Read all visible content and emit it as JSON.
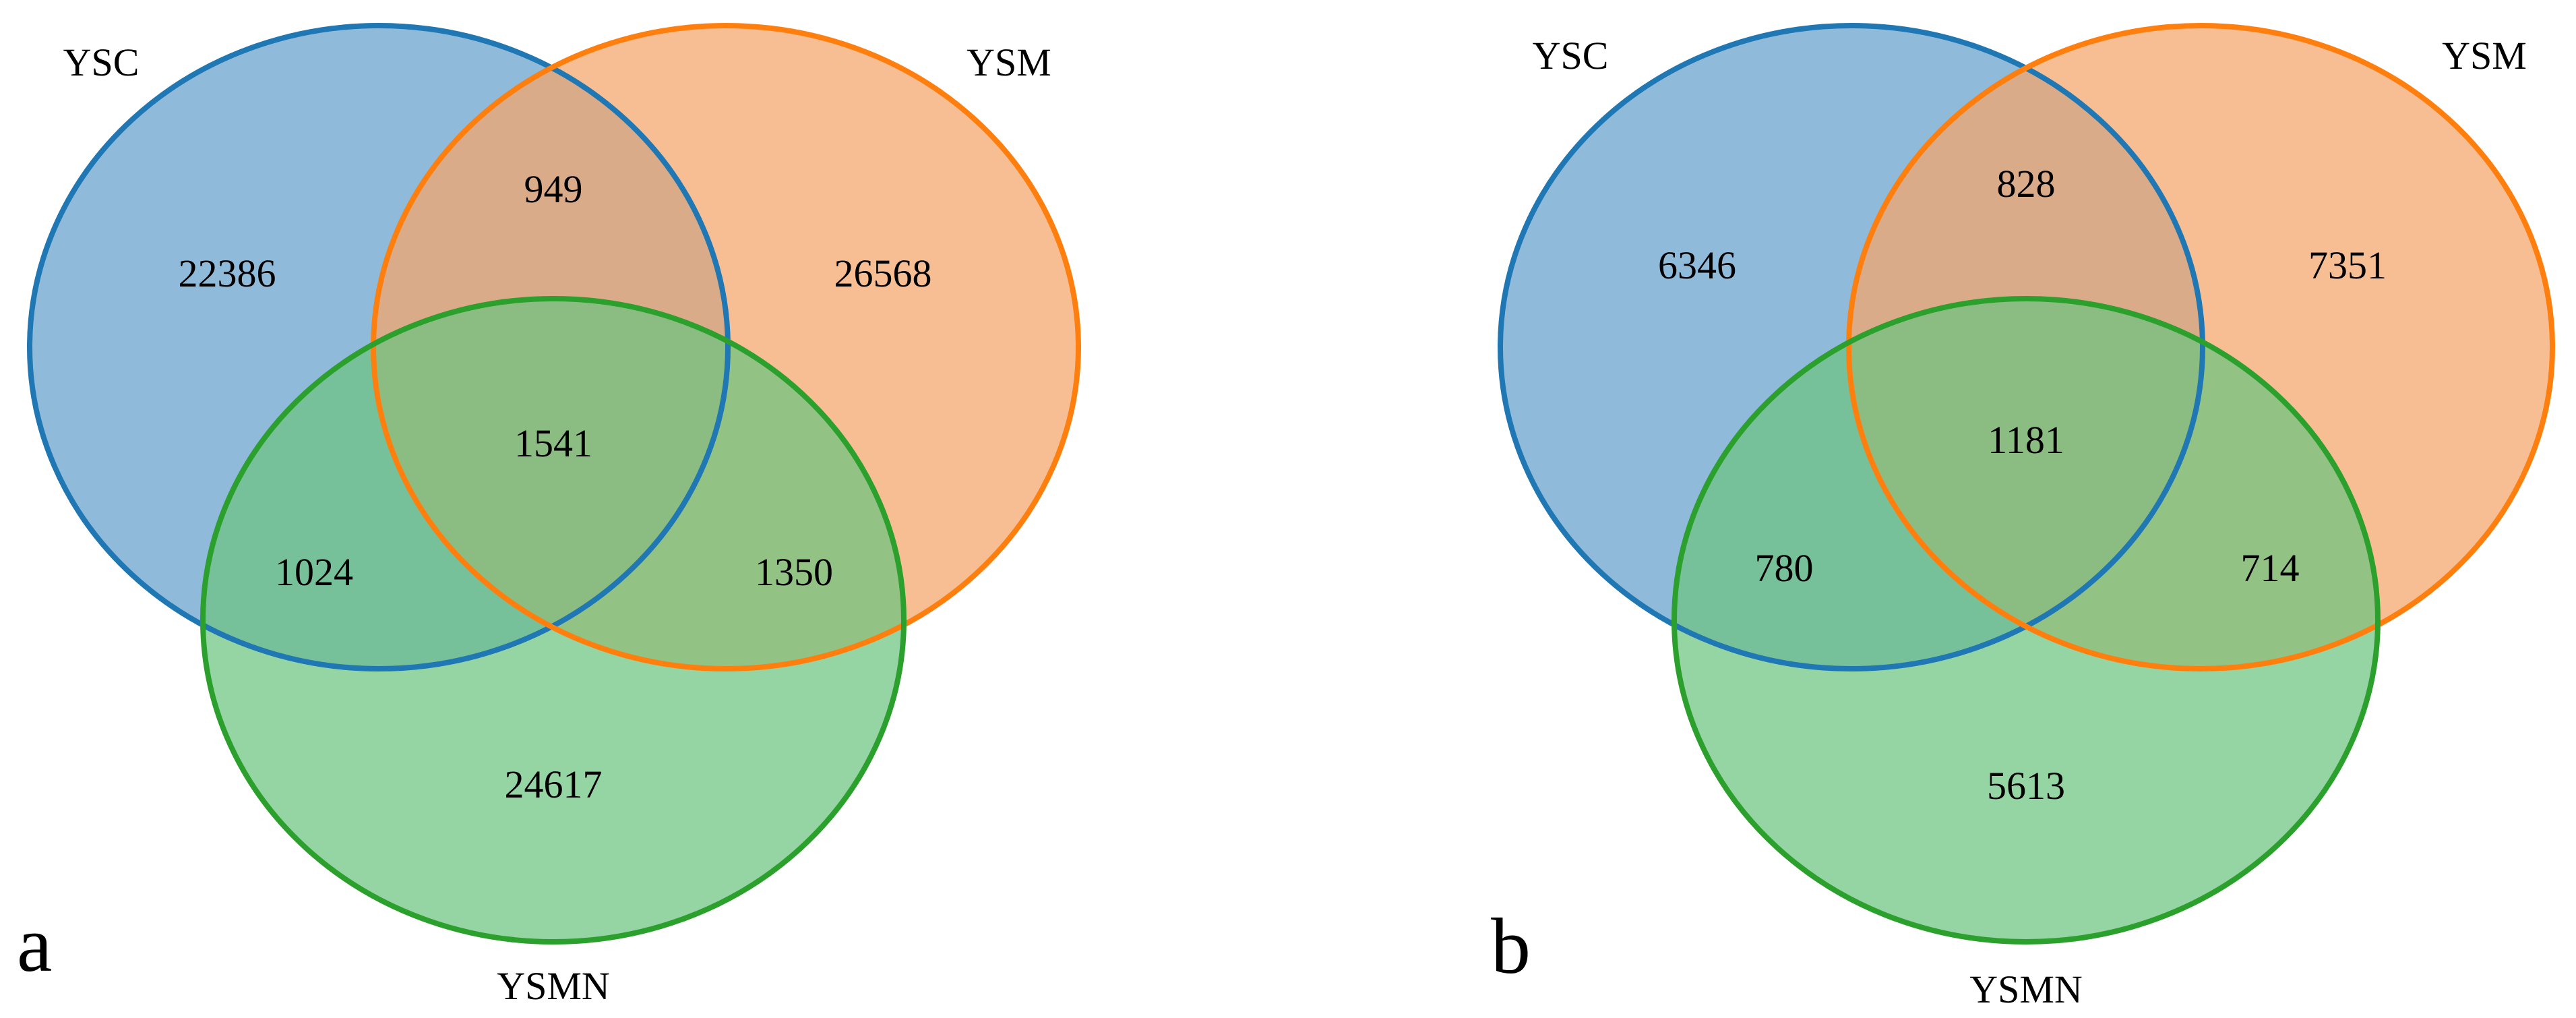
{
  "colors": {
    "YSC": {
      "fill": "#6fa6cf",
      "stroke": "#1f77b4"
    },
    "YSM": {
      "fill": "#f5a56a",
      "stroke": "#ff7f0e"
    },
    "YSMN": {
      "fill": "#6cc47f",
      "stroke": "#2ca02c"
    }
  },
  "panels": [
    {
      "letter": "a",
      "sets": {
        "YSC": "YSC",
        "YSM": "YSM",
        "YSMN": "YSMN"
      },
      "counts": {
        "ysc_only": "22386",
        "ysm_only": "26568",
        "ysmn_only": "24617",
        "ysc_ysm": "949",
        "ysc_ysmn": "1024",
        "ysm_ysmn": "1350",
        "all_three": "1541"
      }
    },
    {
      "letter": "b",
      "sets": {
        "YSC": "YSC",
        "YSM": "YSM",
        "YSMN": "YSMN"
      },
      "counts": {
        "ysc_only": "6346",
        "ysm_only": "7351",
        "ysmn_only": "5613",
        "ysc_ysm": "828",
        "ysc_ysmn": "780",
        "ysm_ysmn": "714",
        "all_three": "1181"
      }
    }
  ]
}
